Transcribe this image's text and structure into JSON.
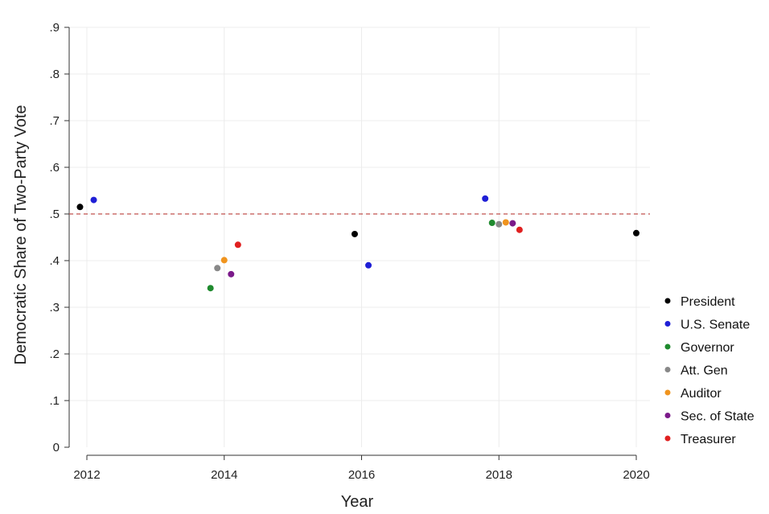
{
  "chart_data": {
    "type": "scatter",
    "title": "",
    "xlabel": "Year",
    "ylabel": "Democratic Share of Two-Party Vote",
    "xlim": [
      2011.8,
      2020.2
    ],
    "ylim": [
      0,
      0.9
    ],
    "x_ticks": [
      2012,
      2014,
      2016,
      2018,
      2020
    ],
    "x_tick_labels": [
      "2012",
      "2014",
      "2016",
      "2018",
      "2020"
    ],
    "y_ticks": [
      0,
      0.1,
      0.2,
      0.3,
      0.4,
      0.5,
      0.6,
      0.7,
      0.8,
      0.9
    ],
    "y_tick_labels": [
      "0",
      ".1",
      ".2",
      ".3",
      ".4",
      ".5",
      ".6",
      ".7",
      ".8",
      ".9"
    ],
    "grid": true,
    "reference_line": {
      "y": 0.5,
      "style": "dashed",
      "color": "#c0504d"
    },
    "legend_position": "right",
    "series": [
      {
        "name": "President",
        "color": "#000000",
        "points": [
          [
            2011.9,
            0.515
          ],
          [
            2015.9,
            0.457
          ],
          [
            2020.0,
            0.459
          ]
        ]
      },
      {
        "name": "U.S. Senate",
        "color": "#1f1fd6",
        "points": [
          [
            2012.1,
            0.53
          ],
          [
            2016.1,
            0.39
          ],
          [
            2017.8,
            0.533
          ]
        ]
      },
      {
        "name": "Governor",
        "color": "#1f8a2e",
        "points": [
          [
            2013.8,
            0.341
          ],
          [
            2017.9,
            0.481
          ]
        ]
      },
      {
        "name": "Att. Gen",
        "color": "#888888",
        "points": [
          [
            2013.9,
            0.384
          ],
          [
            2018.0,
            0.478
          ]
        ]
      },
      {
        "name": "Auditor",
        "color": "#f0941e",
        "points": [
          [
            2014.0,
            0.401
          ],
          [
            2018.1,
            0.482
          ]
        ]
      },
      {
        "name": "Sec. of State",
        "color": "#7b1a8a",
        "points": [
          [
            2014.1,
            0.371
          ],
          [
            2018.2,
            0.48
          ]
        ]
      },
      {
        "name": "Treasurer",
        "color": "#e02020",
        "points": [
          [
            2014.2,
            0.434
          ],
          [
            2018.3,
            0.466
          ]
        ]
      }
    ]
  }
}
